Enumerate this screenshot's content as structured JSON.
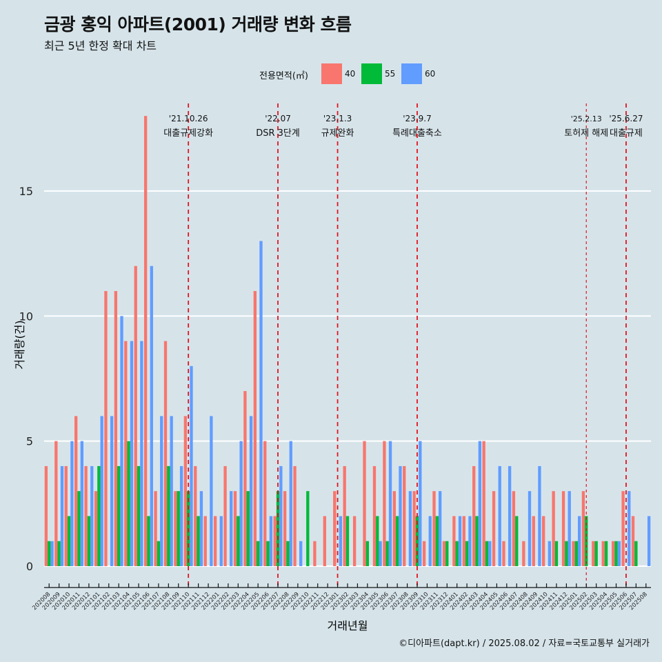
{
  "title": "금광 홍익 아파트(2001) 거래량 변화 흐름",
  "subtitle": "최근 5년 한정 확대 차트",
  "caption": "©디아파트(dapt.kr) / 2025.08.02 / 자료=국토교통부 실거래가",
  "legend": {
    "title": "전용면적(㎡)",
    "items": [
      {
        "label": "40",
        "color": "#f8766d"
      },
      {
        "label": "55",
        "color": "#00ba38"
      },
      {
        "label": "60",
        "color": "#619cff"
      }
    ]
  },
  "chart_data": {
    "type": "bar",
    "xlabel": "거래년월",
    "ylabel": "거래량(건)",
    "ylim": [
      -0.8,
      18.5
    ],
    "yticks": [
      0,
      5,
      10,
      15
    ],
    "grid": true,
    "legend_position": "top",
    "categories": [
      "202008",
      "202009",
      "202010",
      "202011",
      "202012",
      "202101",
      "202102",
      "202103",
      "202104",
      "202105",
      "202106",
      "202107",
      "202108",
      "202109",
      "202110",
      "202111",
      "202112",
      "202201",
      "202202",
      "202203",
      "202204",
      "202205",
      "202206",
      "202207",
      "202208",
      "202209",
      "202210",
      "202211",
      "202212",
      "202301",
      "202302",
      "202303",
      "202304",
      "202305",
      "202306",
      "202307",
      "202308",
      "202309",
      "202310",
      "202311",
      "202312",
      "202401",
      "202402",
      "202403",
      "202404",
      "202405",
      "202406",
      "202407",
      "202408",
      "202409",
      "202410",
      "202411",
      "202412",
      "202501",
      "202502",
      "202503",
      "202504",
      "202505",
      "202506",
      "202507",
      "202508"
    ],
    "series": [
      {
        "name": "40",
        "color": "#f8766d",
        "values": [
          4,
          5,
          4,
          6,
          4,
          3,
          11,
          11,
          9,
          12,
          18,
          3,
          9,
          3,
          6,
          4,
          2,
          2,
          4,
          3,
          7,
          11,
          5,
          2,
          3,
          4,
          null,
          1,
          2,
          3,
          4,
          2,
          5,
          4,
          5,
          3,
          4,
          3,
          1,
          3,
          1,
          2,
          2,
          4,
          5,
          3,
          1,
          3,
          1,
          2,
          2,
          3,
          3,
          1,
          3,
          1,
          1,
          1,
          3,
          2,
          null
        ]
      },
      {
        "name": "55",
        "color": "#00ba38",
        "values": [
          1,
          1,
          2,
          3,
          2,
          4,
          null,
          4,
          5,
          4,
          2,
          1,
          4,
          3,
          3,
          2,
          null,
          null,
          null,
          2,
          3,
          1,
          1,
          3,
          1,
          null,
          3,
          null,
          null,
          null,
          2,
          null,
          1,
          2,
          1,
          2,
          null,
          2,
          null,
          2,
          1,
          1,
          1,
          2,
          1,
          null,
          null,
          2,
          null,
          null,
          null,
          1,
          1,
          1,
          2,
          1,
          1,
          1,
          null,
          1,
          null
        ]
      },
      {
        "name": "60",
        "color": "#619cff",
        "values": [
          1,
          4,
          5,
          5,
          4,
          6,
          6,
          10,
          9,
          9,
          12,
          6,
          6,
          4,
          8,
          3,
          6,
          2,
          3,
          5,
          6,
          13,
          2,
          4,
          5,
          1,
          null,
          null,
          null,
          2,
          null,
          null,
          null,
          1,
          5,
          4,
          3,
          5,
          2,
          3,
          null,
          2,
          2,
          5,
          1,
          4,
          4,
          null,
          3,
          4,
          1,
          null,
          3,
          2,
          null,
          null,
          null,
          1,
          3,
          null,
          2
        ]
      }
    ],
    "events": [
      {
        "date": "'21.10.26",
        "label": "대출규제강화",
        "month": "202110"
      },
      {
        "date": "'22.07",
        "label": "DSR 3단계",
        "month": "202207"
      },
      {
        "date": "'23.1.3",
        "label": "규제완화",
        "month": "202301"
      },
      {
        "date": "'23.9.7",
        "label": "특례대출축소",
        "month": "202309"
      },
      {
        "date": "'25.2.13",
        "label": "토허제 해제",
        "month": "202502"
      },
      {
        "date": "'25.6.27",
        "label": "대출규제",
        "month": "202506"
      }
    ]
  }
}
